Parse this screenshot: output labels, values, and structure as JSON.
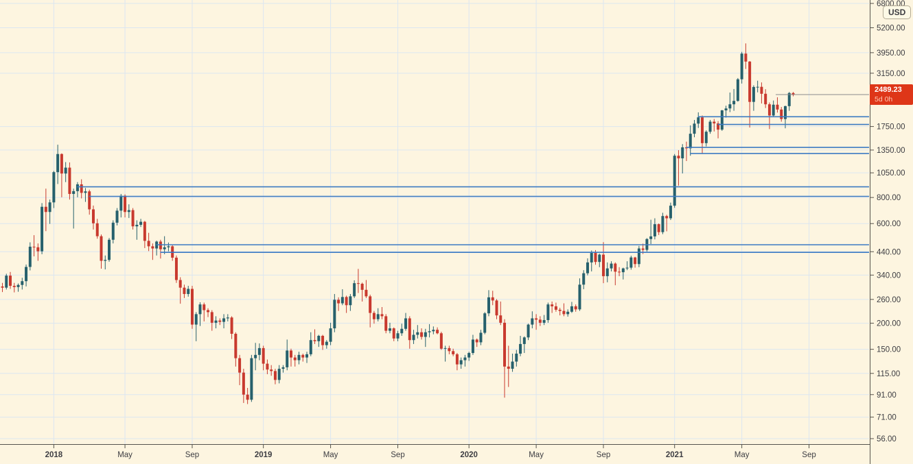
{
  "currency_badge": "USD",
  "last_price_label": {
    "price": "2489.23",
    "countdown": "5d 0h"
  },
  "chart_data": {
    "type": "candlestick",
    "scale": "log",
    "title": "",
    "y_domain": [
      56,
      6800
    ],
    "grid": true,
    "last_price": 2489.23,
    "countdown": "5d 0h",
    "colors": {
      "background": "#fdf5e0",
      "up": "#26606c",
      "down": "#c8392e",
      "ray": "#3b7ac2",
      "grid": "#dce6f1",
      "axis_line": "#55534c",
      "text": "#3d3d42",
      "price_line": "#8c8c8c",
      "label_bg": "#de3618",
      "label_text": "#ffffff",
      "label_countdown": "#ffc9b4"
    },
    "y_ticks": [
      {
        "label": "6800.00",
        "value": 6800
      },
      {
        "label": "5200.00",
        "value": 5200
      },
      {
        "label": "3950.00",
        "value": 3950
      },
      {
        "label": "3150.00",
        "value": 3150
      },
      {
        "label": "1750.00",
        "value": 1750
      },
      {
        "label": "1350.00",
        "value": 1350
      },
      {
        "label": "1050.00",
        "value": 1050
      },
      {
        "label": "800.00",
        "value": 800
      },
      {
        "label": "600.00",
        "value": 600
      },
      {
        "label": "440.00",
        "value": 440
      },
      {
        "label": "340.00",
        "value": 340
      },
      {
        "label": "260.00",
        "value": 260
      },
      {
        "label": "200.00",
        "value": 200
      },
      {
        "label": "150.00",
        "value": 150
      },
      {
        "label": "115.00",
        "value": 115
      },
      {
        "label": "91.00",
        "value": 91
      },
      {
        "label": "71.00",
        "value": 71
      },
      {
        "label": "56.00",
        "value": 56
      }
    ],
    "x_ticks": [
      {
        "label": "2018",
        "index": 13,
        "year": true
      },
      {
        "label": "May",
        "index": 31,
        "year": false
      },
      {
        "label": "Sep",
        "index": 48,
        "year": false
      },
      {
        "label": "2019",
        "index": 66,
        "year": true
      },
      {
        "label": "May",
        "index": 83,
        "year": false
      },
      {
        "label": "Sep",
        "index": 100,
        "year": false
      },
      {
        "label": "2020",
        "index": 118,
        "year": true
      },
      {
        "label": "May",
        "index": 135,
        "year": false
      },
      {
        "label": "Sep",
        "index": 152,
        "year": false
      },
      {
        "label": "2021",
        "index": 170,
        "year": true
      },
      {
        "label": "May",
        "index": 187,
        "year": false
      },
      {
        "label": "Sep",
        "index": 204,
        "year": false
      }
    ],
    "horizontal_rays": [
      {
        "price": 1950,
        "from_index": 176
      },
      {
        "price": 1790,
        "from_index": 181
      },
      {
        "price": 1390,
        "from_index": 173
      },
      {
        "price": 1300,
        "from_index": 174
      },
      {
        "price": 900,
        "from_index": 19
      },
      {
        "price": 810,
        "from_index": 22
      },
      {
        "price": 475,
        "from_index": 39
      },
      {
        "price": 437,
        "from_index": 40
      }
    ],
    "candles": [
      [
        300,
        312,
        282,
        296
      ],
      [
        296,
        345,
        290,
        338
      ],
      [
        338,
        352,
        292,
        302
      ],
      [
        302,
        312,
        281,
        298
      ],
      [
        298,
        310,
        283,
        305
      ],
      [
        305,
        330,
        290,
        318
      ],
      [
        318,
        382,
        300,
        372
      ],
      [
        372,
        488,
        358,
        465
      ],
      [
        465,
        528,
        418,
        462
      ],
      [
        462,
        482,
        398,
        442
      ],
      [
        442,
        752,
        428,
        722
      ],
      [
        722,
        882,
        552,
        682
      ],
      [
        682,
        782,
        598,
        758
      ],
      [
        758,
        1072,
        712,
        1058
      ],
      [
        1058,
        1432,
        928,
        1292
      ],
      [
        1292,
        1302,
        802,
        1042
      ],
      [
        1042,
        1182,
        948,
        1112
      ],
      [
        1112,
        1178,
        782,
        832
      ],
      [
        832,
        882,
        568,
        858
      ],
      [
        858,
        948,
        802,
        925
      ],
      [
        925,
        978,
        792,
        842
      ],
      [
        842,
        888,
        762,
        856
      ],
      [
        856,
        872,
        662,
        702
      ],
      [
        702,
        732,
        562,
        602
      ],
      [
        602,
        632,
        508,
        522
      ],
      [
        522,
        532,
        365,
        398
      ],
      [
        398,
        422,
        362,
        402
      ],
      [
        402,
        512,
        394,
        502
      ],
      [
        502,
        622,
        482,
        606
      ],
      [
        606,
        712,
        588,
        692
      ],
      [
        692,
        832,
        642,
        816
      ],
      [
        816,
        828,
        642,
        682
      ],
      [
        682,
        742,
        638,
        696
      ],
      [
        696,
        712,
        562,
        582
      ],
      [
        582,
        622,
        502,
        592
      ],
      [
        592,
        632,
        578,
        612
      ],
      [
        612,
        618,
        458,
        496
      ],
      [
        496,
        542,
        443,
        467
      ],
      [
        467,
        482,
        402,
        456
      ],
      [
        456,
        497,
        422,
        492
      ],
      [
        492,
        502,
        408,
        452
      ],
      [
        452,
        522,
        428,
        462
      ],
      [
        462,
        487,
        442,
        467
      ],
      [
        467,
        472,
        398,
        412
      ],
      [
        412,
        422,
        312,
        322
      ],
      [
        322,
        332,
        248,
        296
      ],
      [
        296,
        306,
        264,
        276
      ],
      [
        276,
        302,
        268,
        292
      ],
      [
        292,
        302,
        188,
        197
      ],
      [
        197,
        226,
        164,
        221
      ],
      [
        221,
        252,
        194,
        246
      ],
      [
        246,
        251,
        204,
        231
      ],
      [
        231,
        236,
        214,
        226
      ],
      [
        226,
        231,
        184,
        201
      ],
      [
        201,
        216,
        189,
        206
      ],
      [
        206,
        211,
        196,
        203
      ],
      [
        203,
        221,
        189,
        211
      ],
      [
        211,
        221,
        204,
        213
      ],
      [
        213,
        216,
        168,
        178
      ],
      [
        178,
        181,
        124,
        136
      ],
      [
        136,
        141,
        101,
        116
      ],
      [
        116,
        121,
        83,
        91
      ],
      [
        91,
        98,
        82,
        86
      ],
      [
        86,
        141,
        84,
        136
      ],
      [
        136,
        161,
        119,
        141
      ],
      [
        141,
        160,
        133,
        152
      ],
      [
        152,
        156,
        119,
        128
      ],
      [
        128,
        134,
        114,
        120
      ],
      [
        120,
        126,
        112,
        118
      ],
      [
        118,
        121,
        102,
        107
      ],
      [
        107,
        126,
        103,
        121
      ],
      [
        121,
        126,
        116,
        123
      ],
      [
        123,
        167,
        119,
        148
      ],
      [
        148,
        151,
        124,
        137
      ],
      [
        137,
        141,
        124,
        133
      ],
      [
        133,
        146,
        127,
        141
      ],
      [
        141,
        143,
        131,
        137
      ],
      [
        137,
        146,
        129,
        142
      ],
      [
        142,
        181,
        139,
        166
      ],
      [
        166,
        187,
        159,
        164
      ],
      [
        164,
        176,
        154,
        174
      ],
      [
        174,
        176,
        149,
        157
      ],
      [
        157,
        166,
        151,
        163
      ],
      [
        163,
        201,
        157,
        189
      ],
      [
        189,
        276,
        181,
        259
      ],
      [
        259,
        266,
        229,
        249
      ],
      [
        249,
        291,
        244,
        267
      ],
      [
        267,
        271,
        224,
        244
      ],
      [
        244,
        276,
        229,
        269
      ],
      [
        269,
        321,
        264,
        311
      ],
      [
        311,
        364,
        279,
        309
      ],
      [
        309,
        313,
        254,
        289
      ],
      [
        289,
        322,
        264,
        269
      ],
      [
        269,
        274,
        191,
        224
      ],
      [
        224,
        229,
        199,
        209
      ],
      [
        209,
        236,
        204,
        221
      ],
      [
        221,
        239,
        209,
        216
      ],
      [
        216,
        221,
        179,
        184
      ],
      [
        184,
        201,
        179,
        189
      ],
      [
        189,
        191,
        164,
        169
      ],
      [
        169,
        184,
        164,
        179
      ],
      [
        179,
        199,
        174,
        188
      ],
      [
        188,
        224,
        184,
        211
      ],
      [
        211,
        216,
        151,
        166
      ],
      [
        166,
        186,
        159,
        176
      ],
      [
        176,
        196,
        169,
        181
      ],
      [
        181,
        189,
        167,
        172
      ],
      [
        172,
        188,
        154,
        181
      ],
      [
        181,
        198,
        171,
        183
      ],
      [
        183,
        193,
        177,
        186
      ],
      [
        186,
        191,
        177,
        179
      ],
      [
        179,
        182,
        149,
        151
      ],
      [
        151,
        156,
        131,
        152
      ],
      [
        152,
        156,
        142,
        147
      ],
      [
        147,
        151,
        139,
        142
      ],
      [
        142,
        144,
        119,
        127
      ],
      [
        127,
        137,
        121,
        133
      ],
      [
        133,
        141,
        124,
        137
      ],
      [
        137,
        146,
        132,
        144
      ],
      [
        144,
        176,
        141,
        167
      ],
      [
        167,
        169,
        154,
        162
      ],
      [
        162,
        186,
        157,
        180
      ],
      [
        180,
        226,
        177,
        223
      ],
      [
        223,
        288,
        216,
        266
      ],
      [
        266,
        286,
        244,
        257
      ],
      [
        257,
        261,
        209,
        218
      ],
      [
        218,
        254,
        196,
        201
      ],
      [
        201,
        209,
        88,
        124
      ],
      [
        124,
        156,
        99,
        121
      ],
      [
        121,
        143,
        117,
        131
      ],
      [
        131,
        149,
        124,
        143
      ],
      [
        143,
        174,
        139,
        159
      ],
      [
        159,
        173,
        144,
        171
      ],
      [
        171,
        199,
        166,
        197
      ],
      [
        197,
        228,
        189,
        211
      ],
      [
        211,
        221,
        186,
        208
      ],
      [
        208,
        216,
        194,
        201
      ],
      [
        201,
        219,
        196,
        207
      ],
      [
        207,
        251,
        201,
        246
      ],
      [
        246,
        254,
        224,
        241
      ],
      [
        241,
        251,
        227,
        232
      ],
      [
        232,
        237,
        218,
        229
      ],
      [
        229,
        249,
        216,
        221
      ],
      [
        221,
        233,
        215,
        227
      ],
      [
        227,
        253,
        224,
        241
      ],
      [
        241,
        246,
        227,
        233
      ],
      [
        233,
        328,
        229,
        306
      ],
      [
        306,
        359,
        291,
        347
      ],
      [
        347,
        409,
        339,
        391
      ],
      [
        391,
        446,
        354,
        434
      ],
      [
        434,
        448,
        381,
        393
      ],
      [
        393,
        431,
        371,
        426
      ],
      [
        426,
        489,
        311,
        336
      ],
      [
        336,
        391,
        314,
        366
      ],
      [
        366,
        396,
        354,
        386
      ],
      [
        386,
        391,
        304,
        353
      ],
      [
        353,
        371,
        336,
        351
      ],
      [
        351,
        369,
        324,
        366
      ],
      [
        366,
        396,
        359,
        369
      ],
      [
        369,
        421,
        361,
        413
      ],
      [
        413,
        416,
        369,
        384
      ],
      [
        384,
        469,
        371,
        456
      ],
      [
        456,
        481,
        429,
        449
      ],
      [
        449,
        511,
        441,
        506
      ],
      [
        506,
        626,
        479,
        521
      ],
      [
        521,
        636,
        504,
        596
      ],
      [
        596,
        601,
        529,
        546
      ],
      [
        546,
        676,
        534,
        652
      ],
      [
        652,
        661,
        551,
        636
      ],
      [
        636,
        756,
        624,
        731
      ],
      [
        731,
        1292,
        714,
        1268
      ],
      [
        1268,
        1348,
        912,
        1232
      ],
      [
        1232,
        1441,
        1043,
        1391
      ],
      [
        1391,
        1481,
        1196,
        1376
      ],
      [
        1376,
        1772,
        1268,
        1616
      ],
      [
        1616,
        1882,
        1554,
        1807
      ],
      [
        1807,
        2046,
        1722,
        1936
      ],
      [
        1936,
        1976,
        1293,
        1457
      ],
      [
        1457,
        1678,
        1405,
        1652
      ],
      [
        1652,
        1882,
        1616,
        1846
      ],
      [
        1846,
        1901,
        1657,
        1811
      ],
      [
        1811,
        1857,
        1536,
        1691
      ],
      [
        1691,
        2101,
        1668,
        2091
      ],
      [
        2091,
        2201,
        1931,
        2136
      ],
      [
        2136,
        2546,
        2051,
        2236
      ],
      [
        2236,
        2646,
        2081,
        2321
      ],
      [
        2321,
        2986,
        2301,
        2946
      ],
      [
        2946,
        3986,
        2811,
        3911
      ],
      [
        3911,
        4376,
        3301,
        3581
      ],
      [
        3581,
        3601,
        1730,
        2296
      ],
      [
        2296,
        2756,
        2081,
        2706
      ],
      [
        2706,
        2901,
        2551,
        2711
      ],
      [
        2711,
        2846,
        2256,
        2511
      ],
      [
        2511,
        2641,
        2146,
        2236
      ],
      [
        2236,
        2281,
        1701,
        1976
      ],
      [
        1976,
        2331,
        1961,
        2226
      ],
      [
        2226,
        2416,
        2041,
        2111
      ],
      [
        2111,
        2171,
        1846,
        1901
      ],
      [
        1901,
        2201,
        1716,
        2191
      ],
      [
        2191,
        2561,
        2081,
        2531
      ],
      [
        2531,
        2561,
        2441,
        2489.23
      ]
    ]
  }
}
